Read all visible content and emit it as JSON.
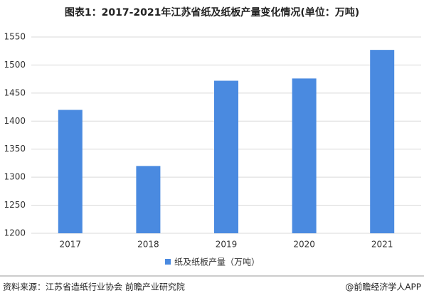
{
  "chart_data": {
    "type": "bar",
    "title": "图表1：2017-2021年江苏省纸及纸板产量变化情况(单位：万吨)",
    "categories": [
      "2017",
      "2018",
      "2019",
      "2020",
      "2021"
    ],
    "series": [
      {
        "name": "纸及纸板产量（万吨）",
        "color": "#4a8ae0",
        "values": [
          1420,
          1320,
          1472,
          1476,
          1527
        ]
      }
    ],
    "ylim": [
      1200,
      1550
    ],
    "yticks": [
      1200,
      1250,
      1300,
      1350,
      1400,
      1450,
      1500,
      1550
    ],
    "grid": true,
    "legend": "bottom",
    "source": "资料来源：江苏省造纸行业协会 前瞻产业研究院",
    "credit": "@前瞻经济学人APP"
  }
}
